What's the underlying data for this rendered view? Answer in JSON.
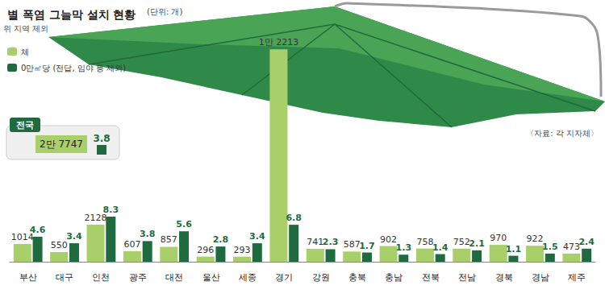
{
  "chart_data": {
    "type": "bar",
    "title": "별 폭염 그늘막 설치 현황",
    "subtitle": "(단위: 개)",
    "annotations": [
      "위 지역 제외",
      "〈자료: 각 지자체〉"
    ],
    "national": {
      "label": "전국",
      "value": 27747,
      "value_label": "2만 7747",
      "density": 3.8
    },
    "categories": [
      "부산",
      "대구",
      "인천",
      "광주",
      "대전",
      "울산",
      "세종",
      "경기",
      "강원",
      "충북",
      "충남",
      "전북",
      "전남",
      "경북",
      "경남",
      "제주"
    ],
    "series": [
      {
        "name": "체",
        "color": "#a9cf6b",
        "values": [
          1014,
          550,
          2128,
          607,
          857,
          296,
          293,
          12213,
          741,
          587,
          902,
          758,
          752,
          970,
          922,
          473
        ],
        "value_labels": [
          "1014",
          "550",
          "2128",
          "607",
          "857",
          "296",
          "293",
          "1만 2213",
          "741",
          "587",
          "902",
          "758",
          "752",
          "970",
          "922",
          "473"
        ]
      },
      {
        "name": "0만㎡당 (전답, 임야 등 제외)",
        "color": "#1f6b3f",
        "axis": "y2",
        "values": [
          4.6,
          3.4,
          8.3,
          3.8,
          5.6,
          2.8,
          3.4,
          6.8,
          2.3,
          1.7,
          1.3,
          1.4,
          2.1,
          1.1,
          1.5,
          2.4
        ]
      }
    ],
    "ylim": [
      0,
      12500
    ],
    "yticks": [
      0,
      12500
    ],
    "y2lim": [
      0,
      40
    ],
    "y2ticks": [
      0,
      40
    ],
    "grid": false,
    "legend": "top-left",
    "data_labels": true,
    "tick_labels": "x"
  }
}
